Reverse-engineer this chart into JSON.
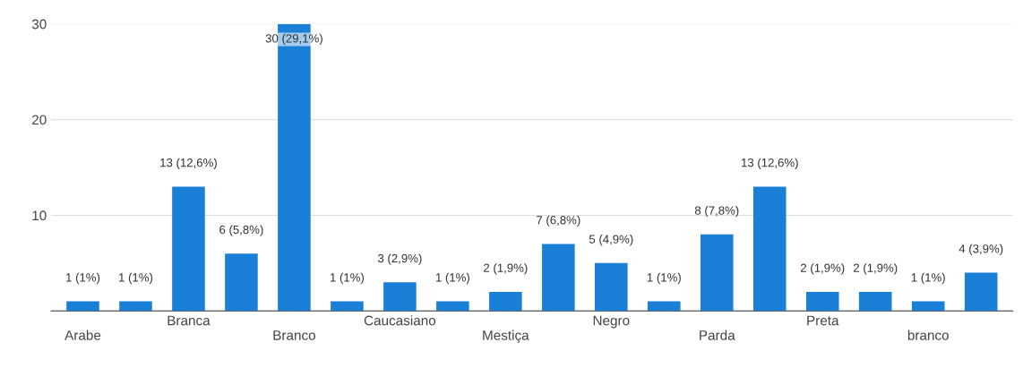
{
  "chart_data": {
    "type": "bar",
    "categories": [
      "Arabe",
      null,
      "Branca",
      null,
      "Branco",
      null,
      "Caucasiano",
      null,
      "Mestiça",
      null,
      "Negro",
      null,
      "Parda",
      null,
      "Preta",
      null,
      "branco",
      null
    ],
    "values": [
      1,
      1,
      13,
      6,
      30,
      1,
      3,
      1,
      2,
      7,
      5,
      1,
      8,
      13,
      2,
      2,
      1,
      4
    ],
    "value_labels": [
      "1 (1%)",
      "1 (1%)",
      "13 (12,6%)",
      "6 (5,8%)",
      "30 (29,1%)",
      "1 (1%)",
      "3 (2,9%)",
      "1 (1%)",
      "2 (1,9%)",
      "7 (6,8%)",
      "5 (4,9%)",
      "1 (1%)",
      "8 (7,8%)",
      "13 (12,6%)",
      "2 (1,9%)",
      "2 (1,9%)",
      "1 (1%)",
      "4 (3,9%)"
    ],
    "color": "#1a7fd6",
    "ylim": [
      0,
      30
    ],
    "yticks": [
      {
        "value": 0,
        "label": null
      },
      10,
      20,
      30
    ],
    "grid": "y"
  }
}
